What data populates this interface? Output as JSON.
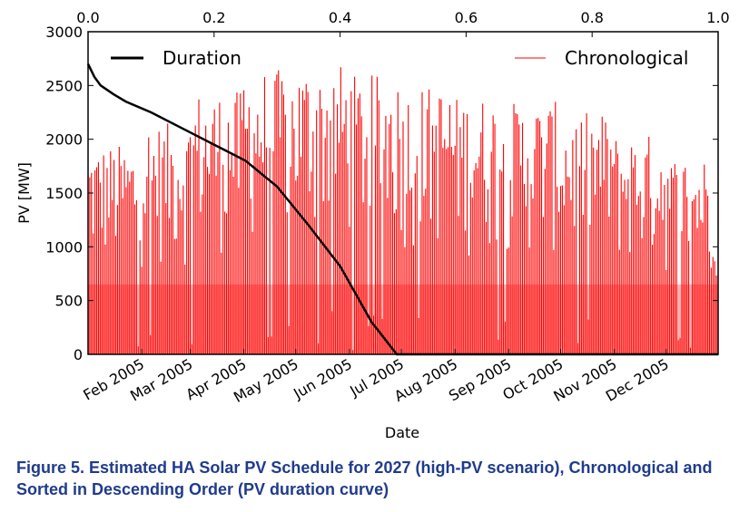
{
  "caption": "Figure 5.  Estimated HA Solar PV Schedule for 2027 (high-PV scenario), Chronological and Sorted in Descending Order (PV duration curve)",
  "chart_data": {
    "type": "line",
    "xlabel": "Date",
    "ylabel": "PV [MW]",
    "ylim": [
      0,
      3000
    ],
    "y_ticks": [
      "0",
      "500",
      "1000",
      "1500",
      "2000",
      "2500",
      "3000"
    ],
    "x_ticks": [
      "Feb 2005",
      "Mar 2005",
      "Apr 2005",
      "May 2005",
      "Jun 2005",
      "Jul 2005",
      "Aug 2005",
      "Sep 2005",
      "Oct 2005",
      "Nov 2005",
      "Dec 2005"
    ],
    "x_range": [
      "2005-01-01",
      "2005-12-31"
    ],
    "secondary_x": {
      "range": [
        0,
        1
      ],
      "ticks": [
        "0.0",
        "0.2",
        "0.4",
        "0.6",
        "0.8",
        "1.0"
      ]
    },
    "legend_placement": "top",
    "series": [
      {
        "name": "Duration",
        "color": "#000000",
        "axis": "top",
        "x": [
          0.0,
          0.01,
          0.02,
          0.04,
          0.06,
          0.1,
          0.15,
          0.2,
          0.25,
          0.3,
          0.35,
          0.4,
          0.45,
          0.49,
          0.5,
          0.6,
          1.0
        ],
        "values": [
          2700,
          2580,
          2500,
          2420,
          2350,
          2250,
          2100,
          1950,
          1800,
          1560,
          1200,
          820,
          300,
          0,
          0,
          0,
          0
        ]
      },
      {
        "name": "Chronological",
        "color": "#ff0000",
        "axis": "bottom",
        "style": "hourly PV output, one daily peak per day",
        "monthly_peak_envelope": {
          "months": [
            "Jan",
            "Feb",
            "Mar",
            "Apr",
            "May",
            "Jun",
            "Jul",
            "Aug",
            "Sep",
            "Oct",
            "Nov",
            "Dec"
          ],
          "values": [
            1950,
            2150,
            2450,
            2650,
            2700,
            2600,
            2500,
            2400,
            2350,
            2250,
            2050,
            1850
          ]
        }
      }
    ]
  }
}
